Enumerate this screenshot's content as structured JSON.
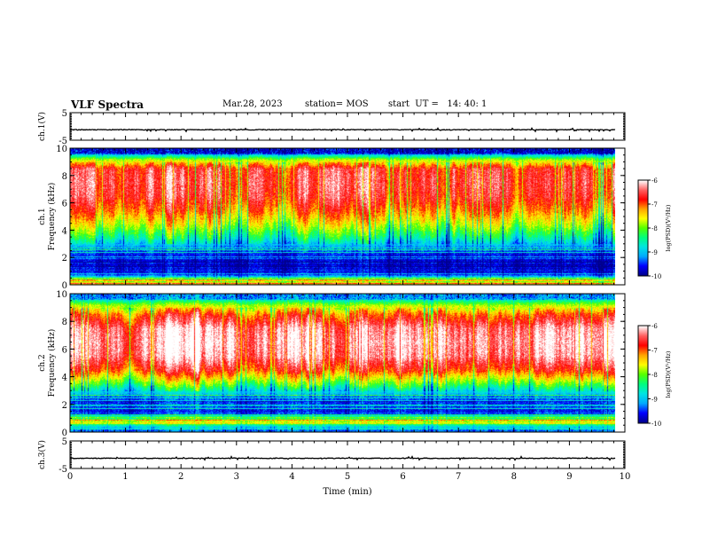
{
  "header": {
    "title": "VLF Spectra",
    "date": "Mar.28, 2023",
    "station": "station= MOS",
    "start": "start  UT =   14: 40: 1"
  },
  "chart_data": [
    {
      "type": "line",
      "panel": "ch1-waveform",
      "ylabel": "ch.1(V)",
      "ylim": [
        -5,
        5
      ],
      "yticks": [
        "5",
        "-5"
      ],
      "xlim": [
        0,
        10
      ],
      "series": [
        {
          "values_approx_constant": -1.2
        }
      ]
    },
    {
      "type": "heatmap",
      "panel": "ch1-spectrogram",
      "ylabel": "ch.1\nFrequency (kHz)",
      "ylim": [
        0,
        10
      ],
      "yticks": [
        "0",
        "2",
        "4",
        "6",
        "8",
        "10"
      ],
      "xlim": [
        0,
        10
      ],
      "data_extent_x": [
        0,
        9.83
      ],
      "colorbar": {
        "label": "log(PSD)(V²/Hz)",
        "range": [
          -10,
          -6
        ],
        "ticks": [
          "-6",
          "-7",
          "-8",
          "-9",
          "-10"
        ]
      },
      "band_profile": [
        {
          "f": 0.3,
          "level": -7.6
        },
        {
          "f": 0.8,
          "level": -9.6
        },
        {
          "f": 1.5,
          "level": -9.8
        },
        {
          "f": 2.5,
          "level": -9.5
        },
        {
          "f": 3.5,
          "level": -8.4
        },
        {
          "f": 4.5,
          "level": -7.6
        },
        {
          "f": 5.5,
          "level": -7.0
        },
        {
          "f": 6.5,
          "level": -6.6
        },
        {
          "f": 7.5,
          "level": -6.5
        },
        {
          "f": 8.5,
          "level": -6.6
        },
        {
          "f": 9.2,
          "level": -7.8
        },
        {
          "f": 9.7,
          "level": -9.4
        }
      ]
    },
    {
      "type": "heatmap",
      "panel": "ch2-spectrogram",
      "ylabel": "ch.2\nFrequency (kHz)",
      "ylim": [
        0,
        10
      ],
      "yticks": [
        "0",
        "2",
        "4",
        "6",
        "8",
        "10"
      ],
      "xlim": [
        0,
        10
      ],
      "data_extent_x": [
        0,
        9.83
      ],
      "colorbar": {
        "label": "log(PSD)(V²/Hz)",
        "range": [
          -10,
          -6
        ],
        "ticks": [
          "-6",
          "-7",
          "-8",
          "-9",
          "-10"
        ]
      },
      "band_profile": [
        {
          "f": 0.3,
          "level": -9.2
        },
        {
          "f": 0.8,
          "level": -7.6
        },
        {
          "f": 1.5,
          "level": -9.6
        },
        {
          "f": 2.5,
          "level": -9.4
        },
        {
          "f": 3.5,
          "level": -8.0
        },
        {
          "f": 4.5,
          "level": -6.8
        },
        {
          "f": 5.5,
          "level": -6.2
        },
        {
          "f": 6.5,
          "level": -6.1
        },
        {
          "f": 7.5,
          "level": -6.2
        },
        {
          "f": 8.5,
          "level": -6.9
        },
        {
          "f": 9.2,
          "level": -7.8
        },
        {
          "f": 9.7,
          "level": -8.8
        }
      ]
    },
    {
      "type": "line",
      "panel": "ch3-waveform",
      "ylabel": "ch.3(V)",
      "ylim": [
        -5,
        5
      ],
      "yticks": [
        "5",
        "-5"
      ],
      "xlim": [
        0,
        10
      ],
      "series": [
        {
          "values_approx_constant": -1.3
        }
      ]
    }
  ],
  "xaxis": {
    "label": "Time  (min)",
    "ticks": [
      "0",
      "1",
      "2",
      "3",
      "4",
      "5",
      "6",
      "7",
      "8",
      "9",
      "10"
    ]
  },
  "colors": {
    "colormap": [
      "#00008c",
      "#0000ff",
      "#00aaff",
      "#00e5e5",
      "#00ff7f",
      "#55ff00",
      "#ffff00",
      "#ffa500",
      "#ff0000",
      "#ff6060",
      "#ffffff"
    ]
  }
}
